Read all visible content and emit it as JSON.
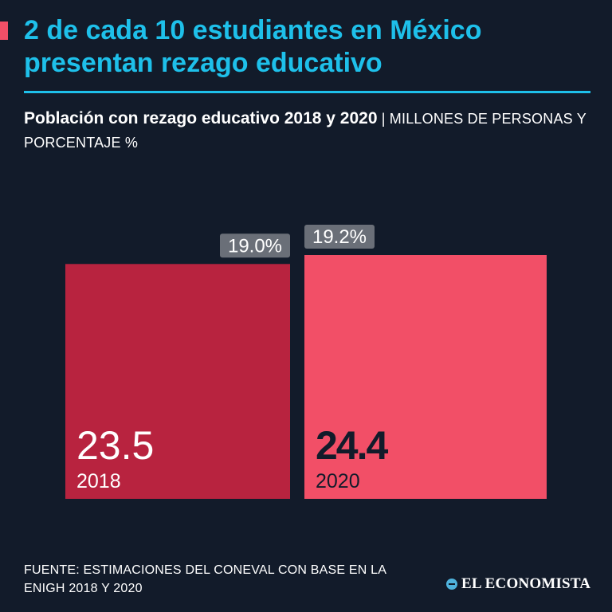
{
  "header": {
    "title": "2 de cada 10 estudiantes en México presentan rezago educativo",
    "subtitle_main": "Población con rezago educativo 2018 y 2020",
    "subtitle_sep": " | ",
    "subtitle_unit": "MILLONES DE PERSONAS Y PORCENTAJE %"
  },
  "chart_data": {
    "type": "bar",
    "title": "Población con rezago educativo 2018 y 2020",
    "unit": "MILLONES DE PERSONAS Y PORCENTAJE %",
    "categories": [
      "2018",
      "2020"
    ],
    "values": [
      23.5,
      24.4
    ],
    "value_labels": [
      "23.5",
      "24.4"
    ],
    "percent_labels": [
      "19.0%",
      "19.2%"
    ],
    "ylim": [
      0,
      24.4
    ]
  },
  "colors": {
    "background": "#121b2a",
    "accent": "#1ec0ea",
    "bar_2018": "#b8233f",
    "bar_2020": "#f24f67",
    "badge": "#6a6f78"
  },
  "footer": {
    "source": "FUENTE: ESTIMACIONES DEL CONEVAL CON BASE EN LA ENIGH 2018 Y 2020",
    "brand": "EL ECONOMISTA",
    "brand_icon": "el-economista-logo-icon"
  }
}
